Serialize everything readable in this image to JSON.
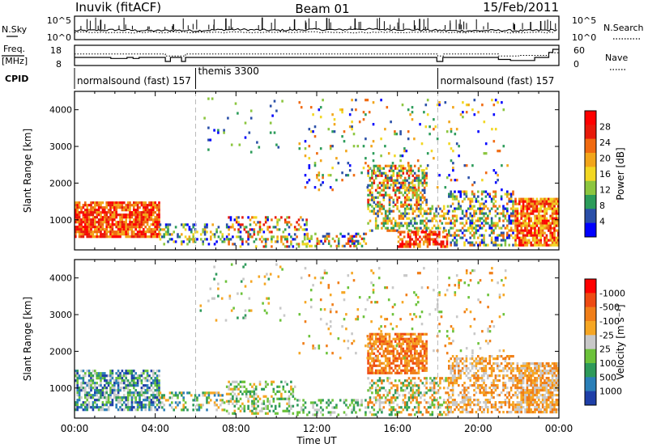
{
  "header": {
    "station": "Inuvik (fitACF)",
    "beam": "Beam 01",
    "date": "15/Feb/2011"
  },
  "labels": {
    "nsky": "N.Sky",
    "freq_line1": "Freq.",
    "freq_line2": "[MHz]",
    "cpid": "CPID",
    "nsearch": "N.Search",
    "nave": "Nave"
  },
  "chart_data": [
    {
      "type": "line",
      "panel": "noise",
      "series": [
        {
          "name": "N.Sky",
          "style": "solid"
        },
        {
          "name": "N.Search",
          "style": "dotted"
        }
      ],
      "yscale": "log",
      "ytick_labels": [
        "10^0",
        "10^5"
      ],
      "x": [
        "00:00",
        "01:00",
        "02:00",
        "03:00",
        "04:00",
        "05:00",
        "06:00",
        "07:00",
        "08:00",
        "09:00",
        "10:00",
        "11:00",
        "12:00",
        "13:00",
        "14:00",
        "15:00",
        "16:00",
        "17:00",
        "18:00",
        "19:00",
        "20:00",
        "21:00",
        "22:00",
        "23:00",
        "24:00"
      ],
      "nsky_decades": [
        2.0,
        2.1,
        2.2,
        2.1,
        2.0,
        2.1,
        2.0,
        2.2,
        2.3,
        2.2,
        2.1,
        2.2,
        2.3,
        2.2,
        2.4,
        2.3,
        2.3,
        2.2,
        2.1,
        2.0,
        2.0,
        2.1,
        2.0,
        2.1,
        2.2
      ],
      "spikes_decades": [
        [
          1.3,
          4.5
        ],
        [
          4.9,
          3.5
        ],
        [
          7.5,
          4.8
        ],
        [
          9.3,
          5.0
        ],
        [
          10.9,
          4.6
        ],
        [
          12.5,
          4.9
        ],
        [
          13.9,
          4.8
        ],
        [
          17.1,
          4.7
        ],
        [
          21.8,
          3.5
        ],
        [
          22.6,
          4.0
        ],
        [
          23.1,
          4.2
        ]
      ]
    },
    {
      "type": "line",
      "panel": "frequency",
      "series": [
        {
          "name": "Freq.",
          "axis": "left",
          "unit": "MHz",
          "style": "solid"
        },
        {
          "name": "Nave",
          "axis": "right",
          "style": "dotted"
        }
      ],
      "ylim_left": [
        8,
        18
      ],
      "yticks_left": [
        8,
        18
      ],
      "ylim_right": [
        0,
        60
      ],
      "yticks_right": [
        0,
        60
      ],
      "freq_steps": [
        [
          0.0,
          12.0
        ],
        [
          1.8,
          11.5
        ],
        [
          2.6,
          12.0
        ],
        [
          2.9,
          11.5
        ],
        [
          3.2,
          12.0
        ],
        [
          4.5,
          10.0
        ],
        [
          4.75,
          12.0
        ],
        [
          5.3,
          10.0
        ],
        [
          5.5,
          12.0
        ],
        [
          17.95,
          10.0
        ],
        [
          18.25,
          12.0
        ],
        [
          21.0,
          11.0
        ],
        [
          21.6,
          10.5
        ],
        [
          22.8,
          12.0
        ],
        [
          23.5,
          14.5
        ],
        [
          23.7,
          16.0
        ],
        [
          24.0,
          16.0
        ]
      ],
      "nave_steps": [
        [
          0.0,
          34
        ],
        [
          4.5,
          28
        ],
        [
          5.5,
          34
        ],
        [
          18.0,
          28
        ],
        [
          18.3,
          34
        ],
        [
          21.0,
          28
        ],
        [
          22.0,
          30
        ],
        [
          23.5,
          38
        ],
        [
          24.0,
          40
        ]
      ]
    },
    {
      "type": "table",
      "panel": "cpid",
      "segments": [
        {
          "label": "normalsound (fast) 157",
          "start_hour": 0,
          "end_hour": 6
        },
        {
          "label": "themis 3300",
          "start_hour": 6,
          "end_hour": 18
        },
        {
          "label": "normalsound (fast) 157",
          "start_hour": 18,
          "end_hour": 24
        }
      ]
    },
    {
      "type": "heatmap",
      "panel": "power",
      "ylabel": "Slant Range [km]",
      "yticks": [
        1000,
        2000,
        3000,
        4000
      ],
      "ylim": [
        180,
        4500
      ],
      "xlim_hours": [
        0,
        24
      ],
      "colorbar_label": "Power [dB]",
      "colorbar_ticks": [
        "4",
        "8",
        "12",
        "16",
        "20",
        "24",
        "28"
      ],
      "colorbar_colors": [
        "#0000ff",
        "#2a4fa8",
        "#2c9c5a",
        "#8cc63f",
        "#f2d722",
        "#f2a51a",
        "#f06a10",
        "#e81a0a",
        "#ff0000"
      ],
      "regions": [
        {
          "t0": 0.0,
          "t1": 4.2,
          "r0": 500,
          "r1": 1500,
          "level_min": 5,
          "level_max": 8,
          "density": 0.85
        },
        {
          "t0": 4.2,
          "t1": 7.5,
          "r0": 300,
          "r1": 900,
          "level_min": 0,
          "level_max": 5,
          "density": 0.35
        },
        {
          "t0": 7.5,
          "t1": 11.5,
          "r0": 250,
          "r1": 1100,
          "level_min": 0,
          "level_max": 7,
          "density": 0.35
        },
        {
          "t0": 11.5,
          "t1": 14.5,
          "r0": 250,
          "r1": 650,
          "level_min": 0,
          "level_max": 7,
          "density": 0.4
        },
        {
          "t0": 14.5,
          "t1": 17.5,
          "r0": 1400,
          "r1": 2500,
          "level_min": 1,
          "level_max": 7,
          "density": 0.55
        },
        {
          "t0": 14.5,
          "t1": 18.5,
          "r0": 700,
          "r1": 1400,
          "level_min": 1,
          "level_max": 6,
          "density": 0.45
        },
        {
          "t0": 16.0,
          "t1": 18.5,
          "r0": 250,
          "r1": 700,
          "level_min": 5,
          "level_max": 8,
          "density": 0.65
        },
        {
          "t0": 18.5,
          "t1": 21.8,
          "r0": 300,
          "r1": 1800,
          "level_min": 0,
          "level_max": 6,
          "density": 0.45
        },
        {
          "t0": 21.8,
          "t1": 24.0,
          "r0": 300,
          "r1": 1600,
          "level_min": 4,
          "level_max": 8,
          "density": 0.8
        },
        {
          "t0": 6.2,
          "t1": 10.5,
          "r0": 2800,
          "r1": 4400,
          "level_min": 0,
          "level_max": 3,
          "density": 0.04
        },
        {
          "t0": 11.0,
          "t1": 21.5,
          "r0": 1800,
          "r1": 4300,
          "level_min": 0,
          "level_max": 6,
          "density": 0.05
        }
      ]
    },
    {
      "type": "heatmap",
      "panel": "velocity",
      "ylabel": "Slant Range [km]",
      "yticks": [
        1000,
        2000,
        3000,
        4000
      ],
      "ylim": [
        180,
        4500
      ],
      "xlim_hours": [
        0,
        24
      ],
      "xticks": [
        "00:00",
        "04:00",
        "08:00",
        "12:00",
        "16:00",
        "20:00",
        "00:00"
      ],
      "xlabel": "Time UT",
      "colorbar_label": "Velocity [m s⁻¹]",
      "colorbar_ticks": [
        "1000",
        "500",
        "100",
        "25",
        "-25",
        "-100",
        "-500",
        "-1000"
      ],
      "colorbar_colors": [
        "#1e3fa8",
        "#2a7fb8",
        "#2e9a5a",
        "#6cc23a",
        "#c8c8c8",
        "#f6a623",
        "#f07e18",
        "#ee4a12",
        "#ff0000"
      ],
      "regions": [
        {
          "t0": 0.0,
          "t1": 4.2,
          "r0": 400,
          "r1": 1500,
          "level_min": 0,
          "level_max": 4,
          "density": 0.65
        },
        {
          "t0": 4.2,
          "t1": 7.5,
          "r0": 350,
          "r1": 900,
          "level_min": 1,
          "level_max": 5,
          "density": 0.35
        },
        {
          "t0": 7.5,
          "t1": 11.0,
          "r0": 250,
          "r1": 1200,
          "level_min": 2,
          "level_max": 5,
          "density": 0.4
        },
        {
          "t0": 11.0,
          "t1": 14.5,
          "r0": 250,
          "r1": 700,
          "level_min": 2,
          "level_max": 4,
          "density": 0.35
        },
        {
          "t0": 14.5,
          "t1": 17.5,
          "r0": 1400,
          "r1": 2500,
          "level_min": 5,
          "level_max": 7,
          "density": 0.7
        },
        {
          "t0": 14.5,
          "t1": 18.5,
          "r0": 250,
          "r1": 1300,
          "level_min": 2,
          "level_max": 6,
          "density": 0.4
        },
        {
          "t0": 18.5,
          "t1": 21.8,
          "r0": 300,
          "r1": 1900,
          "level_min": 4,
          "level_max": 6,
          "density": 0.5
        },
        {
          "t0": 21.8,
          "t1": 24.0,
          "r0": 300,
          "r1": 1700,
          "level_min": 4,
          "level_max": 6,
          "density": 0.8
        },
        {
          "t0": 6.2,
          "t1": 10.5,
          "r0": 2800,
          "r1": 4400,
          "level_min": 2,
          "level_max": 5,
          "density": 0.04
        },
        {
          "t0": 11.0,
          "t1": 21.5,
          "r0": 1800,
          "r1": 4300,
          "level_min": 3,
          "level_max": 6,
          "density": 0.05
        }
      ]
    }
  ]
}
